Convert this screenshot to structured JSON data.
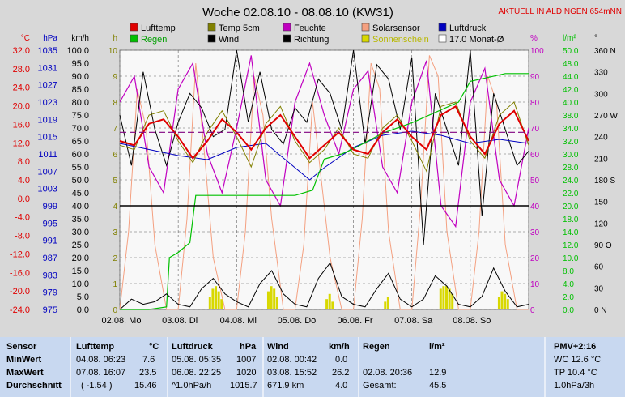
{
  "title": "Woche 02.08.10 - 08.08.10 (KW31)",
  "banner": "AKTUELL IN ALDINGEN 654mNN",
  "colors": {
    "luft": "#e00000",
    "temp5": "#808000",
    "feuchte": "#c000c0",
    "solar": "#f4a080",
    "druck": "#0000c0",
    "regen": "#00c000",
    "wind": "#000000",
    "richtung": "#000000",
    "sonne": "#d8d800",
    "monat": "#800080",
    "bg": "#f8f8f8",
    "grid": "#606060"
  },
  "legend": [
    {
      "label": "Lufttemp",
      "color": "#e00000"
    },
    {
      "label": "Temp 5cm",
      "color": "#808000"
    },
    {
      "label": "Feuchte",
      "color": "#c000c0"
    },
    {
      "label": "Solarsensor",
      "color": "#f4a080"
    },
    {
      "label": "Luftdruck",
      "color": "#0000c0"
    },
    {
      "label": "Regen",
      "color": "#00c000"
    },
    {
      "label": "Wind",
      "color": "#000000"
    },
    {
      "label": "Richtung",
      "color": "#000000"
    },
    {
      "label": "Sonnenschein",
      "color": "#d8d800"
    },
    {
      "label": "17.0 Monat-Ø",
      "color": "#ffffff"
    }
  ],
  "axis_units": {
    "celsius": "°C",
    "hpa": "hPa",
    "kmh": "km/h",
    "h": "h",
    "percent": "%",
    "lm2": "l/m²",
    "deg": "°"
  },
  "table": {
    "headers": [
      "Sensor",
      "Lufttemp",
      "°C",
      "Luftdruck",
      "hPa",
      "Wind",
      "km/h",
      "Regen",
      "l/m²",
      "PMV+2:16"
    ],
    "rows": [
      {
        "label": "MinWert",
        "luft_t": "04.08.  06:23",
        "luft_v": "7.6",
        "druck_t": "05.08.  05:35",
        "druck_v": "1007",
        "wind_t": "02.08.  00:42",
        "wind_v": "0.0",
        "regen_t": "",
        "regen_v": "",
        "pmv": "WC 12.6 °C"
      },
      {
        "label": "MaxWert",
        "luft_t": "07.08.  16:07",
        "luft_v": "23.5",
        "druck_t": "06.08.  22:25",
        "druck_v": "1020",
        "wind_t": "03.08.  15:52",
        "wind_v": "26.2",
        "regen_t": "02.08.  20:36",
        "regen_v": "12.9",
        "pmv": "TP 10.4 °C"
      },
      {
        "label": "Durchschnitt",
        "luft_t": "( -1.54 )",
        "luft_v": "15.46",
        "druck_t": "^1.0hPa/h",
        "druck_v": "1015.7",
        "wind_t": "671.9 km",
        "wind_v": "4.0",
        "regen_t": "Gesamt:",
        "regen_v": "45.5",
        "pmv": "1.0hPa/3h"
      }
    ]
  },
  "chart_data": {
    "type": "line",
    "title": "Woche 02.08.10 - 08.08.10 (KW31)",
    "x_ticks": [
      "02.08.  Mo",
      "03.08.  Di",
      "04.08.  Mi",
      "05.08.  Do",
      "06.08.  Fr",
      "07.08.  Sa",
      "08.08.  So"
    ],
    "xlim": [
      0,
      7
    ],
    "axes": {
      "celsius": {
        "unit": "°C",
        "ylim": [
          -24,
          36
        ],
        "ticks": [
          "32.0",
          "28.0",
          "24.0",
          "20.0",
          "16.0",
          "12.0",
          "8.0",
          "4.0",
          "0.0",
          "-4.0",
          "-8.0",
          "-12.0",
          "-16.0",
          "-20.0",
          "-24.0"
        ]
      },
      "hpa": {
        "unit": "hPa",
        "ylim": [
          975,
          1039
        ],
        "ticks": [
          "1035",
          "1031",
          "1027",
          "1023",
          "1019",
          "1015",
          "1011",
          "1007",
          "1003",
          "999",
          "995",
          "991",
          "987",
          "983",
          "979",
          "975"
        ]
      },
      "kmh": {
        "unit": "km/h",
        "ylim": [
          0,
          100
        ],
        "ticks": [
          "100.0",
          "95.0",
          "90.0",
          "85.0",
          "80.0",
          "75.0",
          "70.0",
          "65.0",
          "60.0",
          "55.0",
          "50.0",
          "45.0",
          "40.0",
          "35.0",
          "30.0",
          "25.0",
          "20.0",
          "15.0",
          "10.0",
          "5.0",
          "0.0"
        ]
      },
      "hours": {
        "unit": "h",
        "ylim": [
          0,
          10
        ],
        "ticks": [
          "10",
          "9",
          "8",
          "7",
          "6",
          "5",
          "4",
          "3",
          "2",
          "1",
          "0"
        ]
      },
      "percent": {
        "unit": "%",
        "ylim": [
          0,
          100
        ],
        "ticks": [
          "100",
          "90",
          "80",
          "70",
          "60",
          "50",
          "40",
          "30",
          "20",
          "10",
          "0"
        ]
      },
      "rain": {
        "unit": "l/m²",
        "ylim": [
          0,
          50
        ],
        "ticks": [
          "50.0",
          "48.0",
          "44.0",
          "42.0",
          "40.0",
          "38.0",
          "34.0",
          "32.0",
          "30.0",
          "28.0",
          "24.0",
          "22.0",
          "20.0",
          "18.0",
          "14.0",
          "12.0",
          "10.0",
          "8.0",
          "4.0",
          "2.0",
          "0.0"
        ]
      },
      "direction": {
        "unit": "°",
        "ylim": [
          0,
          360
        ],
        "ticks": [
          "360 N",
          "330",
          "300",
          "270 W",
          "240",
          "210",
          "180 S",
          "150",
          "120",
          "90 O",
          "60",
          "30",
          "0 N"
        ]
      }
    },
    "series": [
      {
        "name": "Lufttemp",
        "axis": "celsius",
        "x": [
          0,
          0.25,
          0.5,
          0.75,
          1,
          1.25,
          1.5,
          1.75,
          2,
          2.25,
          2.5,
          2.75,
          3,
          3.25,
          3.5,
          3.75,
          4,
          4.25,
          4.5,
          4.75,
          5,
          5.25,
          5.5,
          5.75,
          6,
          6.25,
          6.5,
          6.75,
          7
        ],
        "y": [
          15,
          14,
          19,
          20,
          16,
          11,
          15,
          20,
          17,
          13,
          18,
          21,
          16,
          11,
          14,
          17,
          13,
          12,
          17,
          20,
          16,
          13,
          21,
          23,
          16,
          12,
          19,
          22,
          15
        ]
      },
      {
        "name": "Temp 5cm",
        "axis": "celsius",
        "x": [
          0,
          0.25,
          0.5,
          0.75,
          1,
          1.25,
          1.5,
          1.75,
          2,
          2.25,
          2.5,
          2.75,
          3,
          3.25,
          3.5,
          3.75,
          4,
          4.25,
          4.5,
          4.75,
          5,
          5.25,
          5.5,
          5.75,
          6,
          6.25,
          6.5,
          6.75,
          7
        ],
        "y": [
          14,
          13,
          21,
          22,
          15,
          10,
          17,
          22,
          16,
          9,
          19,
          23,
          15,
          10,
          13,
          18,
          12,
          11,
          18,
          21,
          15,
          8,
          23,
          24,
          15,
          11,
          21,
          24,
          14
        ]
      },
      {
        "name": "Feuchte",
        "axis": "percent",
        "x": [
          0,
          0.25,
          0.5,
          0.75,
          1,
          1.25,
          1.5,
          1.75,
          2,
          2.25,
          2.5,
          2.75,
          3,
          3.25,
          3.5,
          3.75,
          4,
          4.25,
          4.5,
          4.75,
          5,
          5.25,
          5.5,
          5.75,
          6,
          6.25,
          6.5,
          6.75,
          7
        ],
        "y": [
          80,
          90,
          55,
          45,
          85,
          95,
          60,
          45,
          70,
          98,
          50,
          40,
          80,
          95,
          75,
          60,
          85,
          92,
          55,
          45,
          80,
          96,
          40,
          32,
          80,
          93,
          50,
          40,
          70
        ]
      },
      {
        "name": "Solarsensor",
        "axis": "percent",
        "x": [
          0,
          0.15,
          0.3,
          0.45,
          0.6,
          0.8,
          1,
          1.15,
          1.3,
          1.45,
          1.6,
          1.8,
          2,
          2.15,
          2.3,
          2.45,
          2.6,
          2.8,
          3,
          3.15,
          3.3,
          3.45,
          3.6,
          3.8,
          4,
          4.15,
          4.3,
          4.45,
          4.6,
          4.8,
          5,
          5.15,
          5.3,
          5.45,
          5.6,
          5.8,
          6,
          6.15,
          6.3,
          6.45,
          6.6,
          6.8,
          7
        ],
        "y": [
          0,
          30,
          85,
          70,
          25,
          0,
          0,
          35,
          95,
          60,
          20,
          0,
          0,
          30,
          90,
          75,
          35,
          0,
          0,
          25,
          80,
          50,
          20,
          0,
          0,
          35,
          95,
          85,
          30,
          0,
          0,
          40,
          98,
          90,
          30,
          0,
          0,
          30,
          90,
          80,
          25,
          0,
          0
        ]
      },
      {
        "name": "Luftdruck",
        "axis": "hpa",
        "x": [
          0,
          0.5,
          1,
          1.5,
          2,
          2.5,
          3,
          3.25,
          3.5,
          4,
          4.5,
          5,
          5.5,
          6,
          6.5,
          7
        ],
        "y": [
          1016,
          1014.5,
          1013,
          1012,
          1015,
          1016,
          1010,
          1007,
          1010,
          1015,
          1018,
          1019,
          1018,
          1016,
          1017,
          1016
        ]
      },
      {
        "name": "Regen",
        "axis": "rain",
        "x": [
          0,
          0.5,
          0.8,
          0.85,
          1,
          1.2,
          1.3,
          2,
          3,
          3.3,
          3.5,
          3.8,
          4,
          4.5,
          5,
          5.8,
          6,
          6.6,
          7
        ],
        "y": [
          0,
          0,
          0.5,
          10,
          11,
          12.9,
          22,
          22,
          22,
          23,
          29,
          30,
          31,
          34,
          36,
          40,
          44,
          45.5,
          45.5
        ]
      },
      {
        "name": "Wind",
        "axis": "kmh",
        "x": [
          0,
          0.2,
          0.4,
          0.6,
          0.8,
          1,
          1.2,
          1.4,
          1.6,
          1.8,
          2,
          2.2,
          2.4,
          2.6,
          2.8,
          3,
          3.2,
          3.4,
          3.6,
          3.8,
          4,
          4.2,
          4.4,
          4.6,
          4.8,
          5,
          5.2,
          5.4,
          5.6,
          5.8,
          6,
          6.2,
          6.4,
          6.6,
          6.8,
          7
        ],
        "y": [
          0,
          4,
          2,
          3,
          6,
          2,
          1,
          8,
          12,
          6,
          3,
          1,
          10,
          15,
          6,
          2,
          1,
          12,
          18,
          5,
          2,
          1,
          8,
          14,
          4,
          1,
          4,
          13,
          9,
          2,
          1,
          5,
          16,
          7,
          1,
          2
        ]
      },
      {
        "name": "Richtung",
        "axis": "direction",
        "x": [
          0,
          0.2,
          0.4,
          0.6,
          0.8,
          1,
          1.2,
          1.4,
          1.6,
          1.8,
          2,
          2.2,
          2.4,
          2.6,
          2.8,
          3,
          3.2,
          3.4,
          3.6,
          3.8,
          4,
          4.2,
          4.4,
          4.6,
          4.8,
          5,
          5.2,
          5.4,
          5.6,
          5.8,
          6,
          6.2,
          6.4,
          6.6,
          6.8,
          7
        ],
        "y": [
          270,
          200,
          330,
          250,
          200,
          260,
          300,
          280,
          240,
          250,
          360,
          260,
          330,
          250,
          230,
          280,
          260,
          320,
          300,
          250,
          360,
          230,
          340,
          320,
          250,
          350,
          90,
          300,
          250,
          200,
          360,
          130,
          300,
          250,
          200,
          220
        ]
      },
      {
        "name": "Sonnenschein",
        "axis": "hours",
        "x": [
          1.55,
          1.6,
          1.65,
          1.7,
          1.75,
          2.55,
          2.6,
          2.65,
          2.7,
          3.55,
          3.6,
          3.65,
          4.55,
          4.6,
          5.5,
          5.55,
          5.6,
          5.65,
          5.7,
          6.5,
          6.55,
          6.6,
          6.65
        ],
        "y": [
          0.5,
          0.8,
          0.9,
          0.7,
          0.4,
          0.7,
          0.9,
          0.8,
          0.5,
          0.4,
          0.6,
          0.3,
          0.3,
          0.5,
          0.8,
          0.9,
          0.9,
          0.8,
          0.6,
          0.5,
          0.7,
          0.6,
          0.4
        ]
      }
    ],
    "reference_lines": [
      {
        "name": "17.0 Monat-Ø",
        "axis": "celsius",
        "value": 17.0,
        "style": "dashed"
      },
      {
        "name": "0 °C",
        "axis": "celsius",
        "value": 0.0,
        "style": "solid"
      }
    ],
    "grid": true
  }
}
